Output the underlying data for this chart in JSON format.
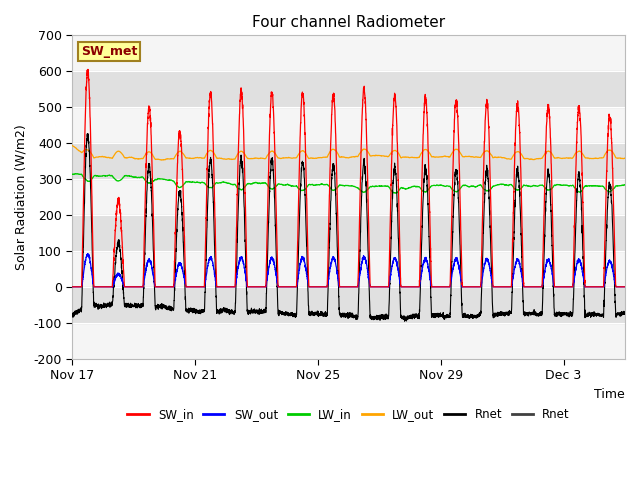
{
  "title": "Four channel Radiometer",
  "xlabel": "Time",
  "ylabel": "Solar Radiation (W/m2)",
  "ylim": [
    -200,
    700
  ],
  "yticks": [
    -200,
    -100,
    0,
    100,
    200,
    300,
    400,
    500,
    600,
    700
  ],
  "annotation_text": "SW_met",
  "annotation_color": "#8B0000",
  "annotation_bg": "#FFFF99",
  "annotation_border": "#A08020",
  "series_colors": {
    "SW_in": "#FF0000",
    "SW_out": "#0000FF",
    "LW_in": "#00CC00",
    "LW_out": "#FFA500",
    "Rnet_black": "#000000",
    "Rnet_dark": "#404040"
  },
  "x_tick_labels": [
    "Nov 17",
    "Nov 21",
    "Nov 25",
    "Nov 29",
    "Dec 3"
  ],
  "x_tick_positions": [
    0,
    4,
    8,
    12,
    16
  ],
  "num_days": 18,
  "background_color": "#FFFFFF",
  "plot_bg": "#F5F5F5",
  "band_color": "#E0E0E0"
}
